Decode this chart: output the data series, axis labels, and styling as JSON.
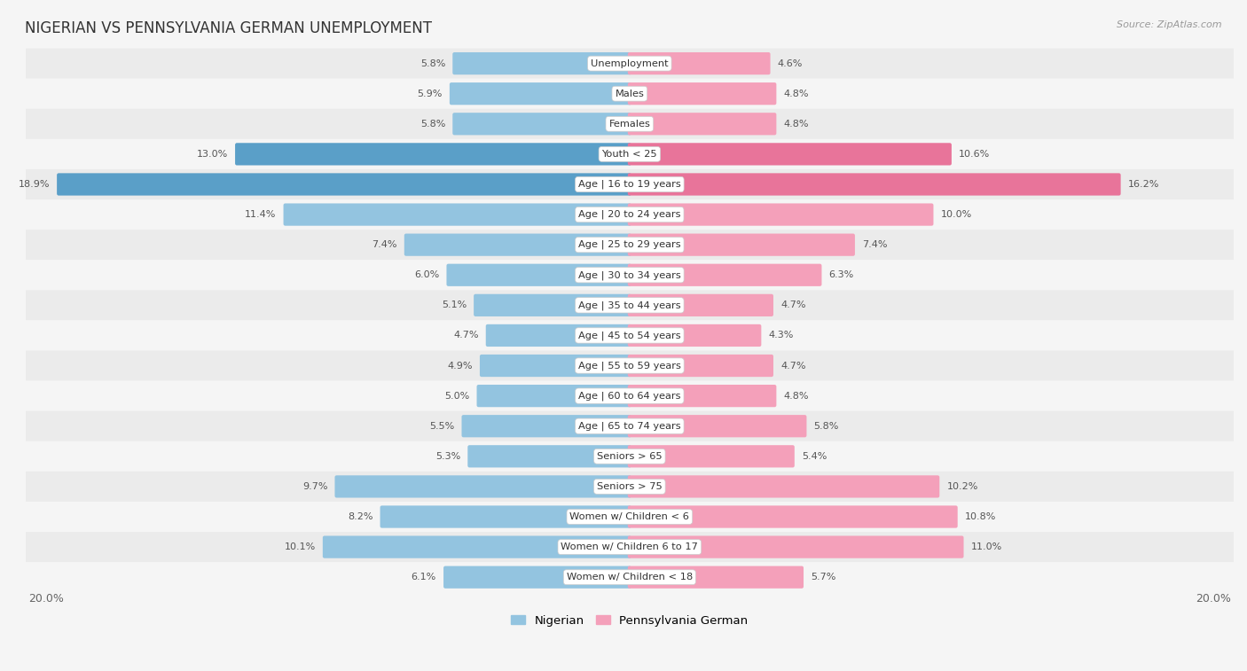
{
  "title": "NIGERIAN VS PENNSYLVANIA GERMAN UNEMPLOYMENT",
  "source": "Source: ZipAtlas.com",
  "categories": [
    "Unemployment",
    "Males",
    "Females",
    "Youth < 25",
    "Age | 16 to 19 years",
    "Age | 20 to 24 years",
    "Age | 25 to 29 years",
    "Age | 30 to 34 years",
    "Age | 35 to 44 years",
    "Age | 45 to 54 years",
    "Age | 55 to 59 years",
    "Age | 60 to 64 years",
    "Age | 65 to 74 years",
    "Seniors > 65",
    "Seniors > 75",
    "Women w/ Children < 6",
    "Women w/ Children 6 to 17",
    "Women w/ Children < 18"
  ],
  "nigerian": [
    5.8,
    5.9,
    5.8,
    13.0,
    18.9,
    11.4,
    7.4,
    6.0,
    5.1,
    4.7,
    4.9,
    5.0,
    5.5,
    5.3,
    9.7,
    8.2,
    10.1,
    6.1
  ],
  "penn_german": [
    4.6,
    4.8,
    4.8,
    10.6,
    16.2,
    10.0,
    7.4,
    6.3,
    4.7,
    4.3,
    4.7,
    4.8,
    5.8,
    5.4,
    10.2,
    10.8,
    11.0,
    5.7
  ],
  "nigerian_color": "#93c4e0",
  "penn_german_color": "#f4a0ba",
  "nigerian_color_highlight": "#5a9fc8",
  "penn_german_color_highlight": "#e8749a",
  "max_val": 20.0,
  "bar_height": 0.62,
  "row_color_odd": "#ebebeb",
  "row_color_even": "#f5f5f5",
  "bg_color": "#f5f5f5",
  "legend_nigerian": "Nigerian",
  "legend_penn": "Pennsylvania German",
  "highlight_rows": [
    3,
    4
  ]
}
